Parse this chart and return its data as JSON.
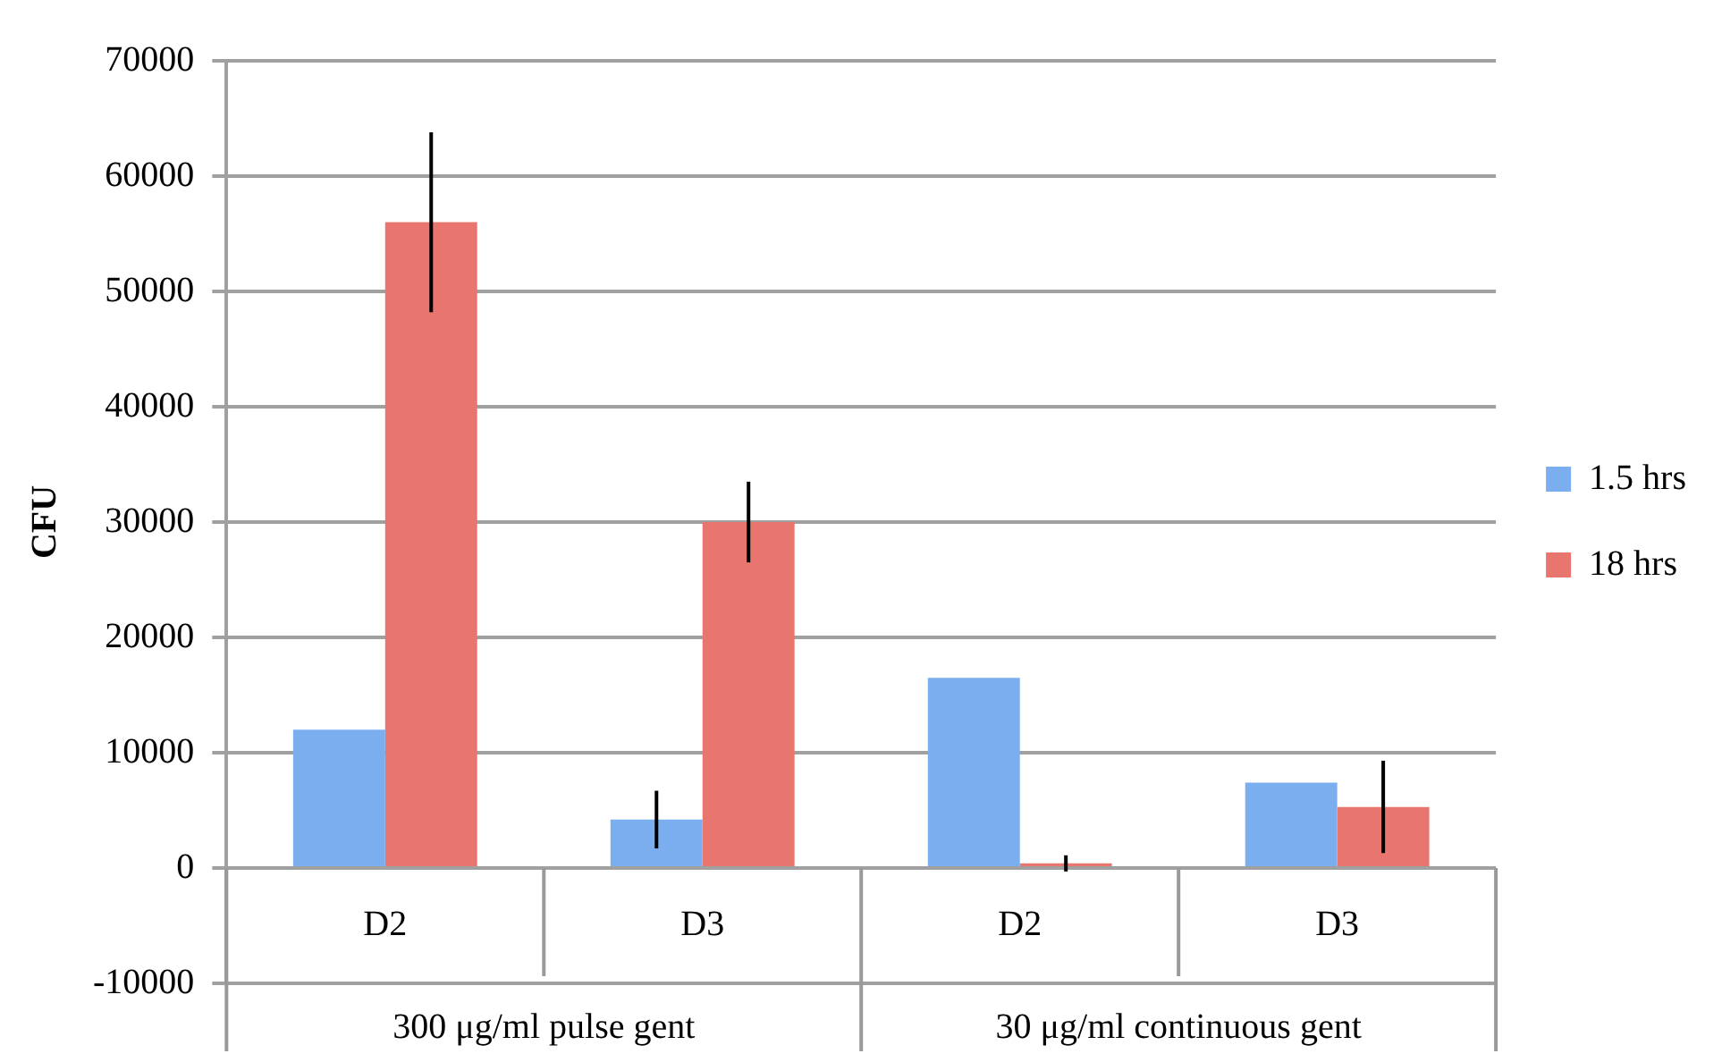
{
  "chart_data": {
    "type": "bar",
    "ylabel": "CFU",
    "categories": [
      "D2",
      "D3",
      "D2",
      "D3"
    ],
    "annotations": [
      "300 μg/ml pulse gent",
      "30 μg/ml continuous gent"
    ],
    "series": [
      {
        "name": "1.5 hrs",
        "color": "#7aaeee",
        "values": [
          12000,
          4200,
          16500,
          7400
        ],
        "errors": [
          null,
          2500,
          null,
          null
        ]
      },
      {
        "name": "18 hrs",
        "color": "#e9766e",
        "values": [
          56000,
          30000,
          400,
          5300
        ],
        "errors": [
          7800,
          3500,
          700,
          4000
        ]
      }
    ],
    "ylim": [
      -10000,
      70000
    ],
    "yticks": [
      -10000,
      0,
      10000,
      20000,
      30000,
      40000,
      50000,
      60000,
      70000
    ],
    "grid": "y",
    "legend": "right"
  }
}
